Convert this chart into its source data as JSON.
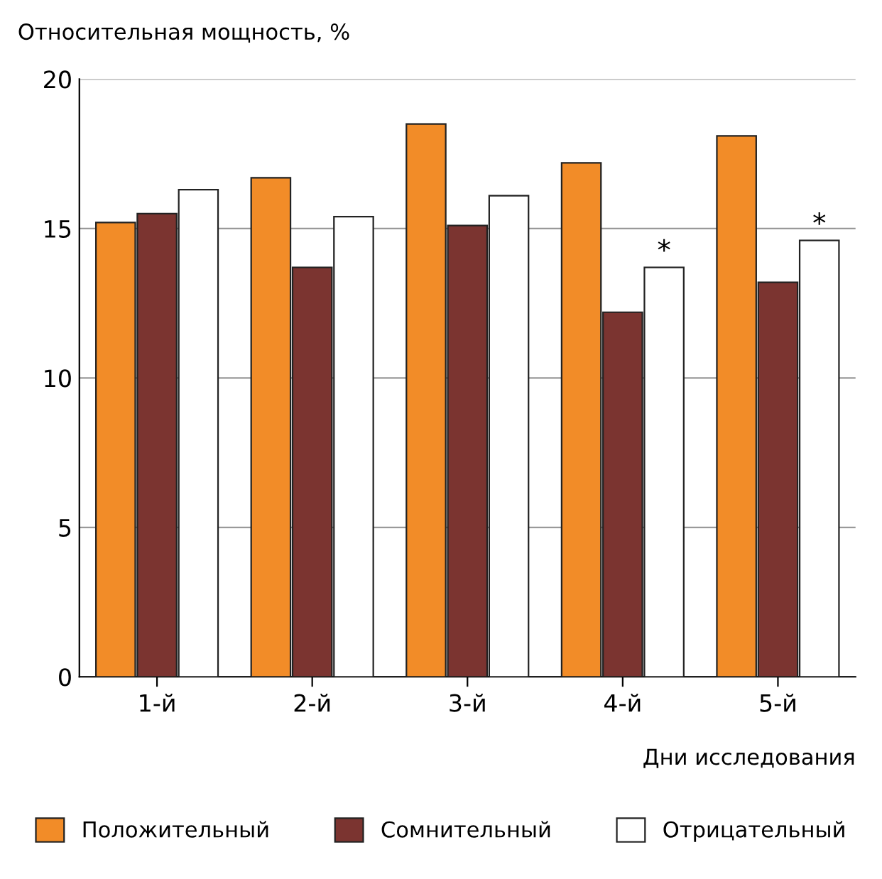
{
  "chart_data": {
    "type": "bar",
    "ylabel": "Относительная мощность, %",
    "xlabel": "Дни исследования",
    "categories": [
      "1-й",
      "2-й",
      "3-й",
      "4-й",
      "5-й"
    ],
    "series": [
      {
        "name": "Положительный",
        "color": "#f28c28",
        "values": [
          15.2,
          16.7,
          18.5,
          17.2,
          18.1
        ]
      },
      {
        "name": "Сомнительный",
        "color": "#7b3430",
        "values": [
          15.5,
          13.7,
          15.1,
          12.2,
          13.2
        ]
      },
      {
        "name": "Отрицательный",
        "color": "#ffffff",
        "values": [
          16.3,
          15.4,
          16.1,
          13.7,
          14.6
        ],
        "value_labels": [
          null,
          null,
          null,
          "*",
          "*"
        ]
      }
    ],
    "ylim": [
      0,
      20
    ],
    "yticks": [
      0,
      5,
      10,
      15,
      20
    ],
    "grid": "y",
    "legend": "bottom"
  }
}
